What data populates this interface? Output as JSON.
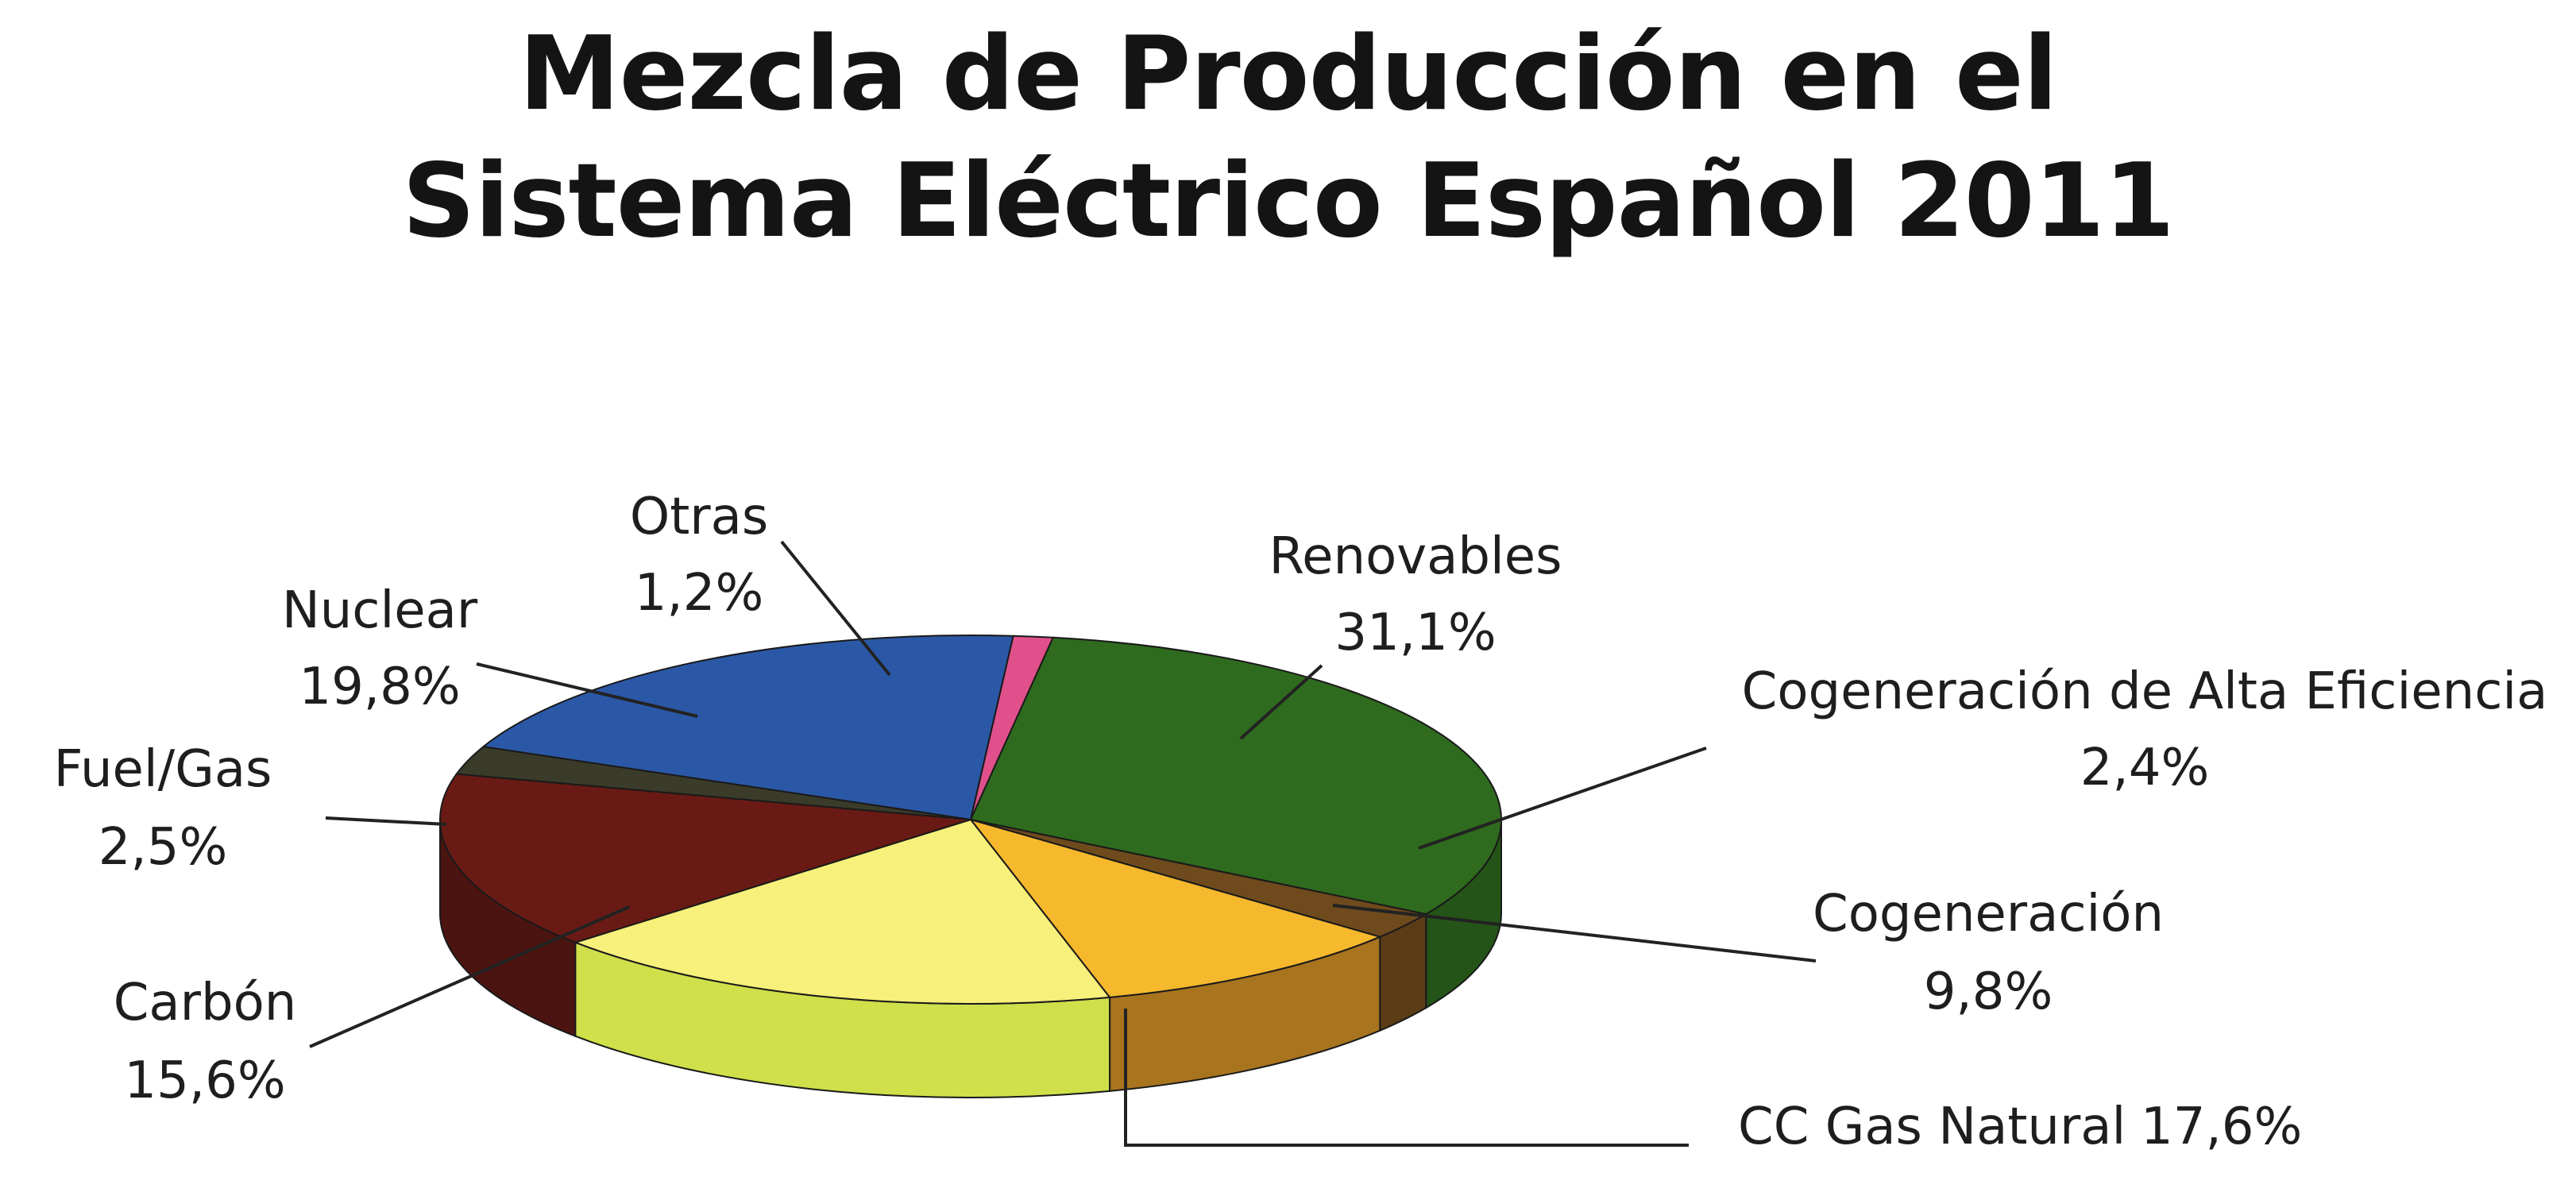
{
  "chart_data": {
    "type": "pie",
    "title_lines": [
      "Mezcla de Producción en el",
      "Sistema Eléctrico Español 2011"
    ],
    "slices": [
      {
        "name": "Renovables",
        "value": 31.1,
        "label": "31,1%",
        "color": "#2f6b1e",
        "side_color": "#245418"
      },
      {
        "name": "Cogeneración de Alta Eficiencia",
        "value": 2.4,
        "label": "2,4%",
        "color": "#6e4a1c",
        "side_color": "#5a3c16"
      },
      {
        "name": "Cogeneración",
        "value": 9.8,
        "label": "9,8%",
        "color": "#f6b82c",
        "side_color": "#a8741e"
      },
      {
        "name": "CC Gas Natural",
        "value": 17.6,
        "label": "17,6%",
        "color": "#f7f07a",
        "side_color": "#cfe04a"
      },
      {
        "name": "Carbón",
        "value": 15.6,
        "label": "15,6%",
        "color": "#6a1a14",
        "side_color": "#4c1410"
      },
      {
        "name": "Fuel/Gas",
        "value": 2.5,
        "label": "2,5%",
        "color": "#3b3b2a",
        "side_color": "#2b2b20"
      },
      {
        "name": "Nuclear",
        "value": 19.8,
        "label": "19,8%",
        "color": "#2b58a6",
        "side_color": "#1f447f"
      },
      {
        "name": "Otras",
        "value": 1.2,
        "label": "1,2%",
        "color": "#e0508a",
        "side_color": "#b03c6a"
      }
    ]
  }
}
